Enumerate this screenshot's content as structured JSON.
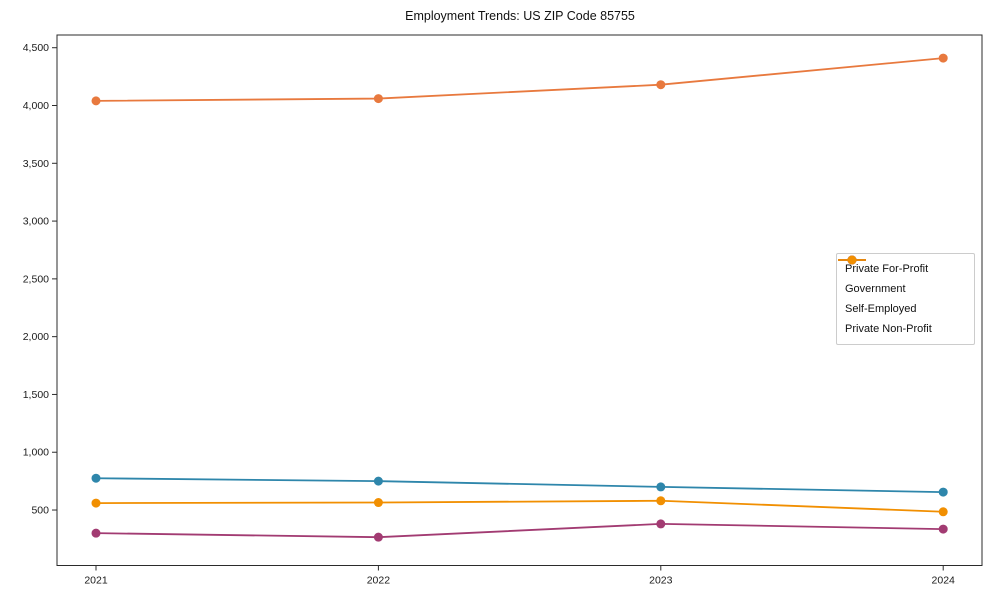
{
  "chart_data": {
    "type": "line",
    "title": "Employment Trends: US ZIP Code 85755",
    "xlabel": "",
    "ylabel": "",
    "x": [
      2021,
      2022,
      2023,
      2024
    ],
    "x_tick_labels": [
      "2021",
      "2022",
      "2023",
      "2024"
    ],
    "y_ticks": [
      500,
      1000,
      1500,
      2000,
      2500,
      3000,
      3500,
      4000,
      4500
    ],
    "y_tick_labels": [
      "500",
      "1,000",
      "1,500",
      "2,000",
      "2,500",
      "3,000",
      "3,500",
      "4,000",
      "4,500"
    ],
    "ylim": [
      20,
      4610
    ],
    "grid": false,
    "legend_position": "center right",
    "series": [
      {
        "name": "Private For-Profit",
        "color": "#E8793E",
        "values": [
          4040,
          4060,
          4180,
          4410
        ]
      },
      {
        "name": "Government",
        "color": "#2E86AB",
        "values": [
          775,
          750,
          700,
          655
        ]
      },
      {
        "name": "Self-Employed",
        "color": "#A23B72",
        "values": [
          300,
          265,
          380,
          335
        ]
      },
      {
        "name": "Private Non-Profit",
        "color": "#F18F01",
        "values": [
          560,
          565,
          580,
          485
        ]
      }
    ]
  }
}
